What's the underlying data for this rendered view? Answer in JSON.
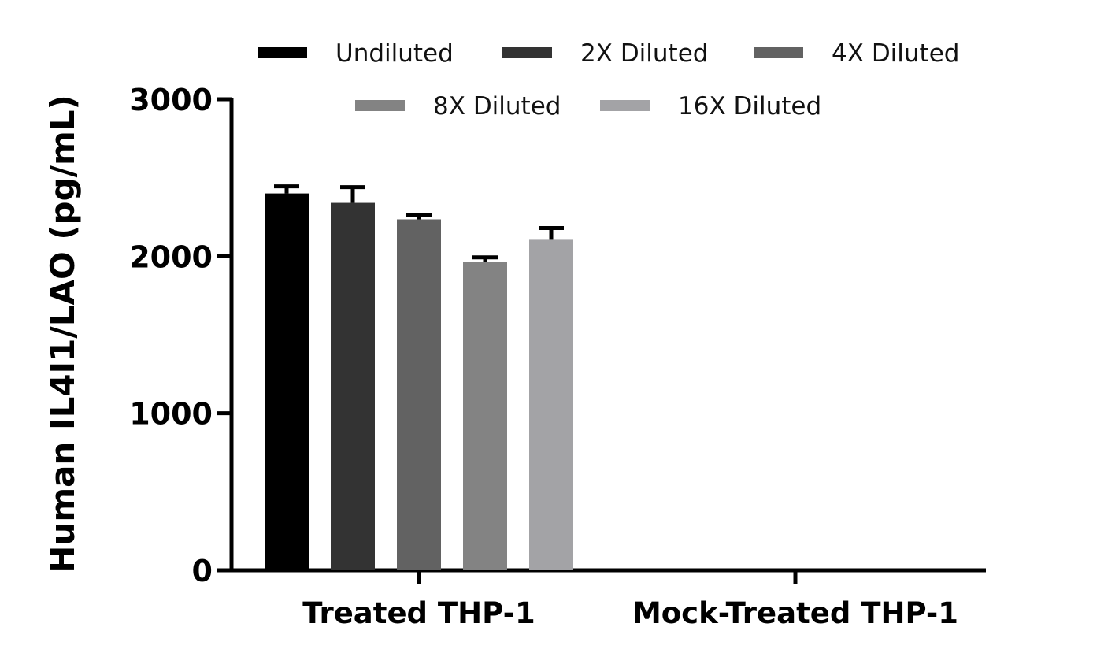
{
  "chart_data": {
    "type": "bar",
    "ylabel": "Human IL4I1/LAO (pg/mL)",
    "xlabel": "",
    "ylim": [
      0,
      3000
    ],
    "yticks": [
      0,
      1000,
      2000,
      3000
    ],
    "categories": [
      "Treated THP-1",
      "Mock-Treated THP-1"
    ],
    "legend_position": "top",
    "series": [
      {
        "name": "Undiluted",
        "color": "#000000",
        "values": [
          2400,
          0
        ],
        "errors": [
          45,
          0
        ]
      },
      {
        "name": "2X Diluted",
        "color": "#333333",
        "values": [
          2340,
          0
        ],
        "errors": [
          100,
          0
        ]
      },
      {
        "name": "4X Diluted",
        "color": "#626262",
        "values": [
          2235,
          0
        ],
        "errors": [
          25,
          0
        ]
      },
      {
        "name": "8X Diluted",
        "color": "#838383",
        "values": [
          1965,
          0
        ],
        "errors": [
          28,
          0
        ]
      },
      {
        "name": "16X Diluted",
        "color": "#a3a3a6",
        "values": [
          2105,
          0
        ],
        "errors": [
          75,
          0
        ]
      }
    ]
  }
}
